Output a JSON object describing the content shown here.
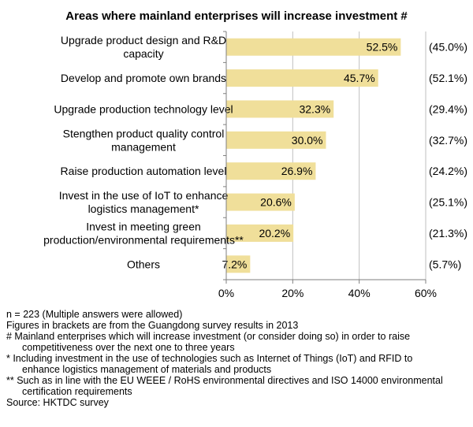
{
  "chart_data": {
    "type": "bar",
    "orientation": "horizontal",
    "title": "Areas where mainland enterprises will increase investment #",
    "categories": [
      [
        "Upgrade product design and R&D",
        "capacity"
      ],
      [
        "Develop and promote own brands"
      ],
      [
        "Upgrade production technology level"
      ],
      [
        "Stengthen product quality control",
        "management"
      ],
      [
        "Raise production automation level"
      ],
      [
        "Invest in the use of IoT to enhance",
        "logistics management*"
      ],
      [
        "Invest in meeting green",
        "production/environmental requirements**"
      ],
      [
        "Others"
      ]
    ],
    "values": [
      52.5,
      45.7,
      32.3,
      30.0,
      26.9,
      20.6,
      20.2,
      7.2
    ],
    "value_labels": [
      "52.5%",
      "45.7%",
      "32.3%",
      "30.0%",
      "26.9%",
      "20.6%",
      "20.2%",
      "7.2%"
    ],
    "bracket_labels": [
      "(45.0%)",
      "(52.1%)",
      "(29.4%)",
      "(32.7%)",
      "(24.2%)",
      "(25.1%)",
      "(21.3%)",
      "(5.7%)"
    ],
    "xlim": [
      0,
      60
    ],
    "xticks": [
      0,
      20,
      40,
      60
    ],
    "xtick_labels": [
      "0%",
      "20%",
      "40%",
      "60%"
    ],
    "xlabel": "",
    "ylabel": "",
    "grid": true,
    "bar_color": "#f0df9a",
    "grid_color": "#bfbfbf"
  },
  "notes": [
    {
      "text": "n = 223 (Multiple answers were allowed)",
      "indent": false
    },
    {
      "text": "Figures in brackets are from the Guangdong survey results in 2013",
      "indent": false
    },
    {
      "text": "#  Mainland enterprises which will increase investment (or consider doing so) in order to raise",
      "indent": false
    },
    {
      "text": "competitiveness over the next one to three years",
      "indent": true
    },
    {
      "text": "*   Including investment in the use of technologies such as Internet of Things (IoT) and RFID to",
      "indent": false
    },
    {
      "text": "enhance logistics management of materials and products",
      "indent": true
    },
    {
      "text": "** Such as in line with the EU WEEE / RoHS environmental directives and ISO 14000 environmental",
      "indent": false
    },
    {
      "text": "certification requirements",
      "indent": true
    },
    {
      "text": "Source: HKTDC survey",
      "indent": false
    }
  ]
}
